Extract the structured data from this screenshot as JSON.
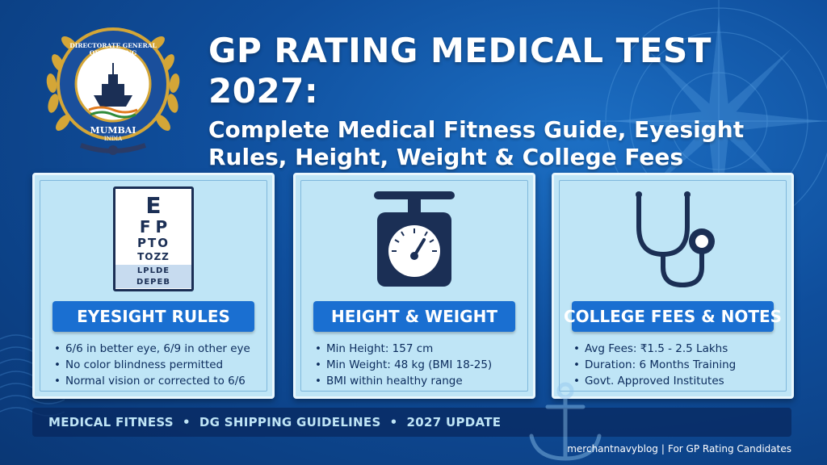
{
  "header": {
    "title": "GP RATING MEDICAL TEST 2027:",
    "subtitle_line1": "Complete Medical Fitness Guide, Eyesight",
    "subtitle_line2": "Rules, Height, Weight & College Fees"
  },
  "logo": {
    "icon": "dg-shipping-emblem-icon",
    "ring_text": "DIRECTORATE GENERAL OF SHIPPING",
    "city": "MUMBAI",
    "country": "INDIA"
  },
  "eye_chart": {
    "rows": [
      "E",
      "FP",
      "PTO",
      "TOZZ",
      "LPLDE",
      "DEPEB"
    ]
  },
  "cards": [
    {
      "icon": "eye-chart-icon",
      "heading": "EYESIGHT RULES",
      "items": [
        "6/6 in better eye, 6/9 in other eye",
        "No color blindness permitted",
        "Normal vision or corrected to 6/6"
      ]
    },
    {
      "icon": "weighing-scale-icon",
      "heading": "HEIGHT & WEIGHT",
      "items": [
        "Min Height: 157 cm",
        "Min Weight: 48 kg (BMI 18-25)",
        "BMI within healthy range"
      ]
    },
    {
      "icon": "stethoscope-icon",
      "heading": "COLLEGE FEES & NOTES",
      "items": [
        "Avg Fees: ₹1.5 - 2.5 Lakhs",
        "Duration: 6 Months Training",
        "Govt. Approved Institutes"
      ]
    }
  ],
  "footer": {
    "tagline": "MEDICAL FITNESS  •  DG SHIPPING GUIDELINES  •  2027 UPDATE",
    "credit_site": "merchantnavyblog",
    "credit_sep": "|",
    "credit_note": "For GP Rating Candidates"
  },
  "colors": {
    "background": "#0f4e9c",
    "card": "#bfe5f6",
    "banner": "#1a6fd1",
    "text_dark": "#0b2b5c",
    "gold": "#d4a637"
  }
}
